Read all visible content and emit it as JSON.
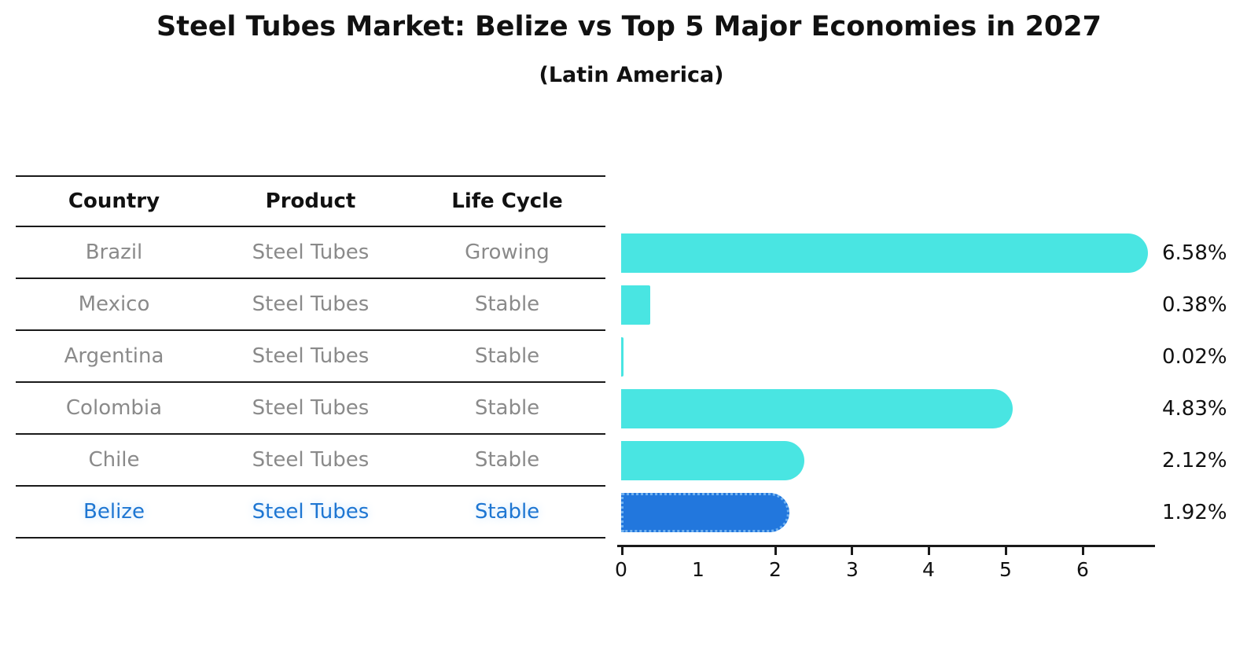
{
  "title": "Steel Tubes Market: Belize vs Top 5 Major Economies in 2027",
  "subtitle": "(Latin America)",
  "table": {
    "headers": [
      "Country",
      "Product",
      "Life Cycle"
    ],
    "rows": [
      {
        "country": "Brazil",
        "product": "Steel Tubes",
        "life_cycle": "Growing"
      },
      {
        "country": "Mexico",
        "product": "Steel Tubes",
        "life_cycle": "Stable"
      },
      {
        "country": "Argentina",
        "product": "Steel Tubes",
        "life_cycle": "Stable"
      },
      {
        "country": "Colombia",
        "product": "Steel Tubes",
        "life_cycle": "Stable"
      },
      {
        "country": "Chile",
        "product": "Steel Tubes",
        "life_cycle": "Stable"
      },
      {
        "country": "Belize",
        "product": "Steel Tubes",
        "life_cycle": "Stable"
      }
    ],
    "highlighted_row": "Belize"
  },
  "chart_data": {
    "type": "bar",
    "orientation": "horizontal",
    "categories": [
      "Brazil",
      "Mexico",
      "Argentina",
      "Colombia",
      "Chile",
      "Belize"
    ],
    "values": [
      6.58,
      0.38,
      0.02,
      4.83,
      2.12,
      1.92
    ],
    "value_labels": [
      "6.58%",
      "0.38%",
      "0.02%",
      "4.83%",
      "2.12%",
      "1.92%"
    ],
    "x_ticks": [
      "0",
      "1",
      "2",
      "3",
      "4",
      "5",
      "6"
    ],
    "xlim": [
      0,
      6.9
    ],
    "grid": false,
    "legend": "none",
    "bar_color": "#49E5E2",
    "highlight_bar_color": "#2277DD",
    "highlight_bar_border": "#72B2F0",
    "highlight_index": 5
  },
  "colors": {
    "title_text": "#111111",
    "table_text": "#8a8a8a",
    "highlight_text": "#1E76D2",
    "line": "#1a1a1a"
  }
}
